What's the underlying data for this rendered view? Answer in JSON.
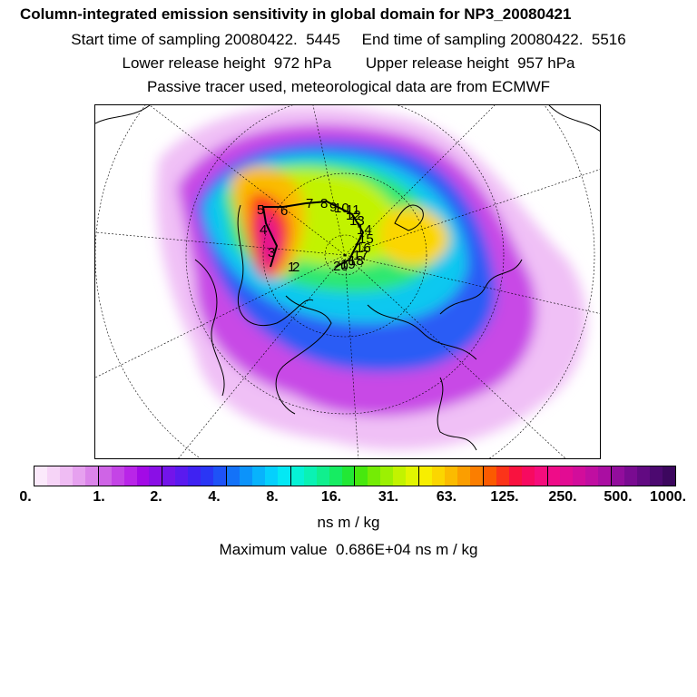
{
  "header": {
    "title": "Column-integrated emission sensitivity in global domain for NP3_20080421",
    "line2": "Start time of sampling 20080422.  5445     End time of sampling 20080422.  5516",
    "line3": "Lower release height  972 hPa        Upper release height  957 hPa",
    "line4": "Passive tracer used, meteorological data are from ECMWF"
  },
  "map": {
    "projection": "polar stereographic (north pole)",
    "track_labels": [
      "1",
      "2",
      "3",
      "4",
      "5",
      "6",
      "7",
      "8",
      "9",
      "10",
      "11",
      "12",
      "13",
      "14",
      "15",
      "16",
      "17",
      "18",
      "19",
      "20"
    ]
  },
  "colorbar": {
    "colors": [
      "#fbe9fb",
      "#f6d4f7",
      "#efbcf3",
      "#e6a1ef",
      "#db84ea",
      "#cf64e6",
      "#c444e6",
      "#b925e8",
      "#a30ae6",
      "#8a0fe6",
      "#7314ea",
      "#5a1aef",
      "#3f22f2",
      "#2a36f5",
      "#1e52f7",
      "#1372f8",
      "#0c93fa",
      "#08b3fc",
      "#05d0fd",
      "#04e8f4",
      "#06f2d6",
      "#0af2b4",
      "#10ef8e",
      "#16ec62",
      "#22e835",
      "#47e80e",
      "#74ec05",
      "#9cf002",
      "#c2f300",
      "#e2f500",
      "#f7ee00",
      "#fbd600",
      "#fbbb00",
      "#fb9e00",
      "#fb7e00",
      "#fb5a00",
      "#fb3419",
      "#f9123f",
      "#f70a60",
      "#f50d7c",
      "#ef0c88",
      "#e20c93",
      "#d20d9b",
      "#c00ea1",
      "#aa0ea2",
      "#920d9c",
      "#790b91",
      "#620a82",
      "#4c0970",
      "#3c075e"
    ],
    "tick_labels": [
      "0.",
      "1.",
      "2.",
      "4.",
      "8.",
      "16.",
      "31.",
      "63.",
      "125.",
      "250.",
      "500.",
      "1000."
    ],
    "unit": "ns m / kg"
  },
  "footer": {
    "max_value": "Maximum value  0.686E+04 ns m / kg"
  }
}
